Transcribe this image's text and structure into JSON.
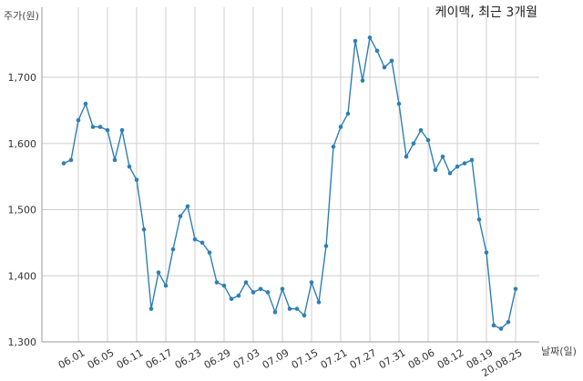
{
  "chart_data": {
    "type": "line",
    "title": "케이맥, 최근 3개월",
    "ylabel": "주가(원)",
    "xlabel": "날짜(일)",
    "ylim": [
      1300,
      1770
    ],
    "yticks": [
      1300,
      1400,
      1500,
      1600,
      1700
    ],
    "ytick_labels": [
      "1,300",
      "1,400",
      "1,500",
      "1,600",
      "1,700"
    ],
    "xtick_labels": [
      "06.01",
      "06.05",
      "06.11",
      "06.17",
      "06.23",
      "06.29",
      "07.03",
      "07.09",
      "07.15",
      "07.21",
      "07.27",
      "07.31",
      "08.06",
      "08.12",
      "08.19",
      "20.08.25"
    ],
    "xtick_indices": [
      2,
      6,
      10,
      14,
      18,
      22,
      26,
      30,
      34,
      38,
      42,
      46,
      50,
      54,
      58,
      62
    ],
    "grid": true,
    "line_color": "#2e7fb4",
    "series": [
      {
        "values": [
          1570,
          1575,
          1635,
          1660,
          1625,
          1625,
          1620,
          1575,
          1620,
          1565,
          1545,
          1470,
          1350,
          1405,
          1385,
          1440,
          1490,
          1505,
          1455,
          1450,
          1435,
          1390,
          1385,
          1365,
          1370,
          1390,
          1375,
          1380,
          1375,
          1345,
          1380,
          1350,
          1350,
          1340,
          1390,
          1360,
          1445,
          1595,
          1625,
          1645,
          1755,
          1695,
          1760,
          1740,
          1715,
          1725,
          1660,
          1580,
          1600,
          1620,
          1605,
          1560,
          1580,
          1555,
          1565,
          1570,
          1575,
          1485,
          1435,
          1325,
          1320,
          1330,
          1380
        ]
      }
    ]
  }
}
